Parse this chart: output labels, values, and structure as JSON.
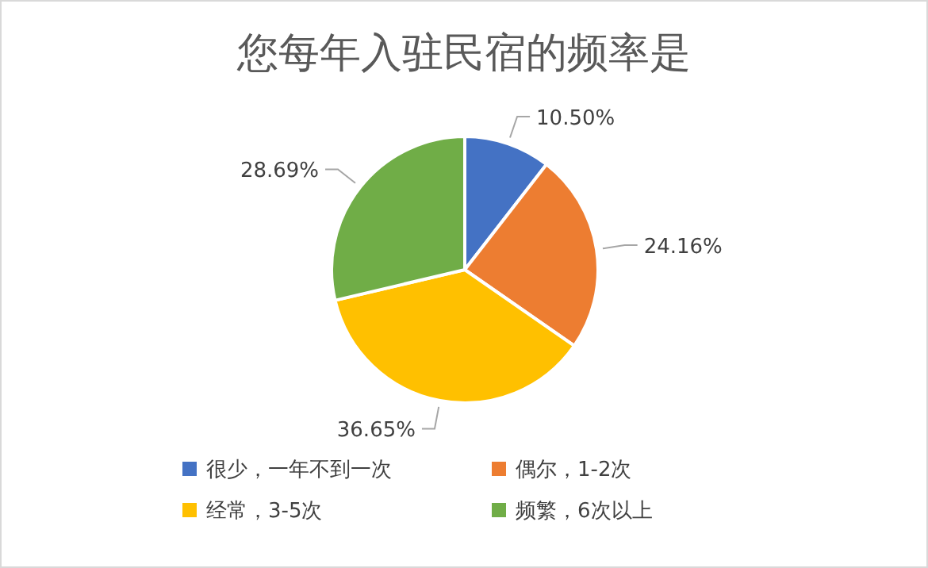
{
  "chart_data": {
    "type": "pie",
    "title": "您每年入驻民宿的频率是",
    "categories": [
      "很少，一年不到一次",
      "偶尔，1-2次",
      "经常，3-5次",
      "频繁，6次以上"
    ],
    "values": [
      10.5,
      24.16,
      36.65,
      28.69
    ],
    "colors": [
      "#4472c4",
      "#ed7d31",
      "#ffc000",
      "#70ad47"
    ],
    "value_labels": [
      "10.50%",
      "24.16%",
      "36.65%",
      "28.69%"
    ],
    "legend": "bottom"
  }
}
